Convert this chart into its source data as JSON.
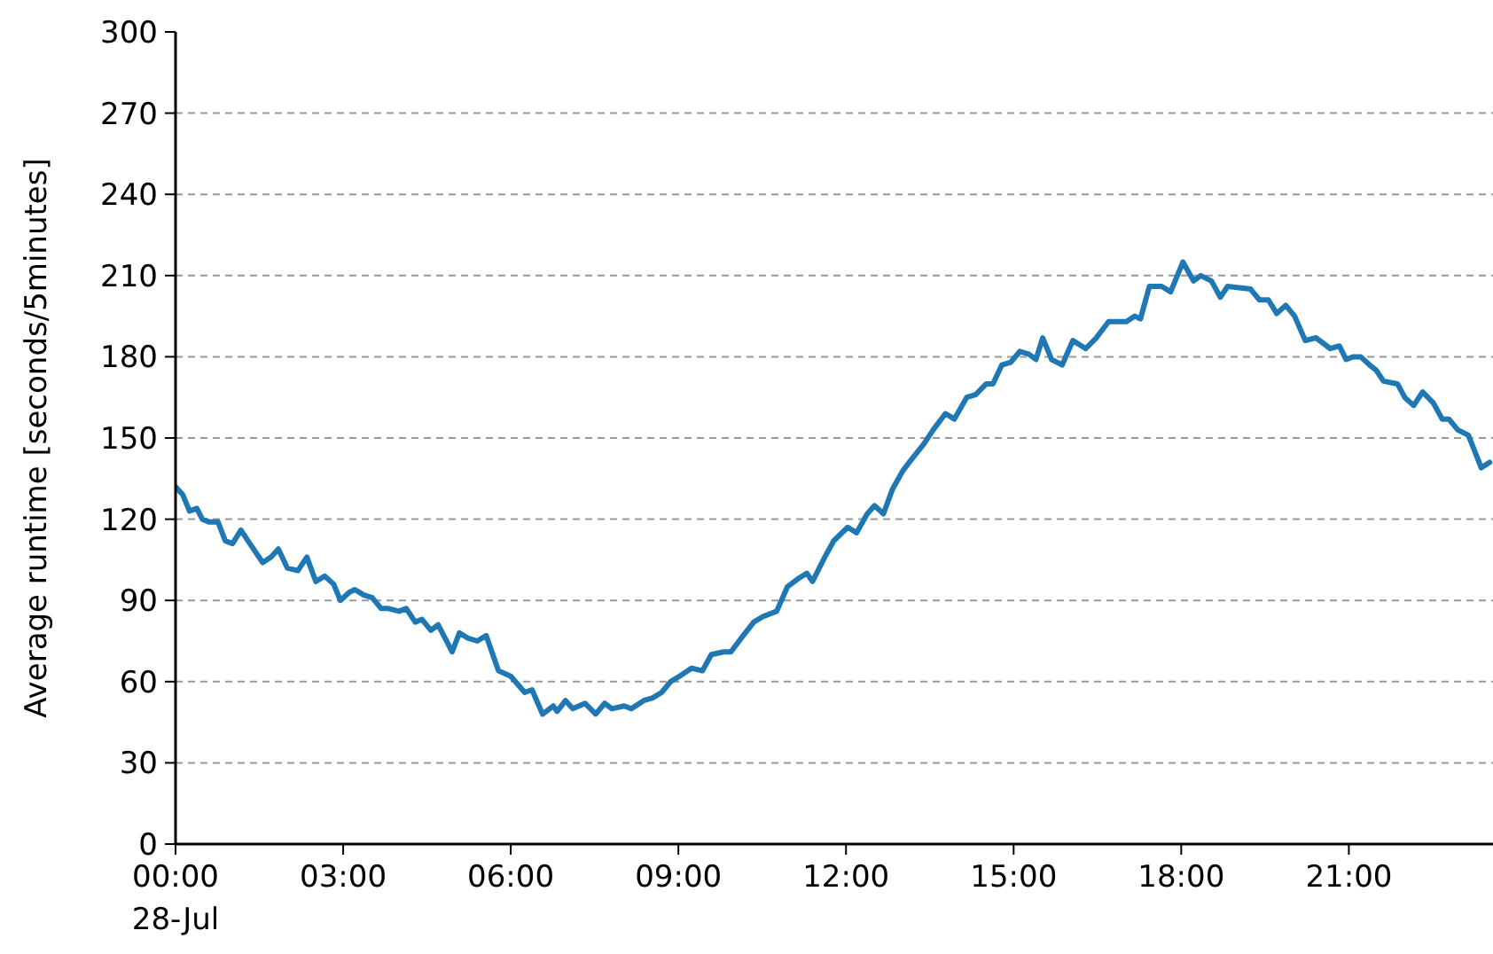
{
  "chart_data": {
    "type": "line",
    "ylabel": "Average runtime [seconds/5minutes]",
    "xlim": [
      0,
      23.58
    ],
    "ylim": [
      0,
      300
    ],
    "xticks": [
      {
        "value": 0,
        "label": "00:00\n28-Jul"
      },
      {
        "value": 3,
        "label": "03:00"
      },
      {
        "value": 6,
        "label": "06:00"
      },
      {
        "value": 9,
        "label": "09:00"
      },
      {
        "value": 12,
        "label": "12:00"
      },
      {
        "value": 15,
        "label": "15:00"
      },
      {
        "value": 18,
        "label": "18:00"
      },
      {
        "value": 21,
        "label": "21:00"
      }
    ],
    "yticks": [
      0,
      30,
      60,
      90,
      120,
      150,
      180,
      210,
      240,
      270,
      300
    ],
    "grid": "y",
    "line_style": "solid",
    "series": [
      {
        "color": "#1f77b4",
        "x": [
          0,
          0.13,
          0.25,
          0.38,
          0.48,
          0.6,
          0.76,
          0.89,
          1.02,
          1.17,
          1.33,
          1.56,
          1.71,
          1.84,
          2.0,
          2.19,
          2.35,
          2.51,
          2.67,
          2.83,
          2.95,
          3.11,
          3.21,
          3.37,
          3.52,
          3.68,
          3.81,
          4.0,
          4.13,
          4.29,
          4.41,
          4.57,
          4.7,
          4.95,
          5.08,
          5.24,
          5.4,
          5.56,
          5.78,
          6.0,
          6.25,
          6.38,
          6.57,
          6.76,
          6.83,
          6.98,
          7.11,
          7.33,
          7.52,
          7.68,
          7.81,
          8.03,
          8.16,
          8.38,
          8.54,
          8.7,
          8.86,
          9.02,
          9.24,
          9.43,
          9.59,
          9.81,
          9.94,
          10.16,
          10.35,
          10.51,
          10.76,
          10.95,
          11.14,
          11.3,
          11.4,
          11.62,
          11.78,
          12.03,
          12.19,
          12.38,
          12.51,
          12.67,
          12.83,
          13.02,
          13.17,
          13.4,
          13.56,
          13.78,
          13.94,
          14.16,
          14.32,
          14.51,
          14.63,
          14.79,
          14.95,
          15.11,
          15.27,
          15.4,
          15.52,
          15.68,
          15.87,
          16.06,
          16.29,
          16.48,
          16.7,
          17.02,
          17.17,
          17.27,
          17.43,
          17.65,
          17.81,
          18.03,
          18.22,
          18.35,
          18.54,
          18.7,
          18.83,
          19.24,
          19.4,
          19.56,
          19.71,
          19.87,
          20.03,
          20.22,
          20.41,
          20.67,
          20.83,
          20.95,
          21.08,
          21.21,
          21.37,
          21.49,
          21.62,
          21.87,
          22.0,
          22.16,
          22.32,
          22.51,
          22.67,
          22.79,
          22.95,
          23.14,
          23.37,
          23.52
        ],
        "values": [
          132,
          129,
          123,
          124,
          120,
          119,
          119,
          112,
          111,
          116,
          111,
          104,
          106,
          109,
          102,
          101,
          106,
          97,
          99,
          96,
          90,
          93,
          94,
          92,
          91,
          87,
          87,
          86,
          87,
          82,
          83,
          79,
          81,
          71,
          78,
          76,
          75,
          77,
          64,
          62,
          56,
          57,
          48,
          51,
          49,
          53,
          50,
          52,
          48,
          52,
          50,
          51,
          50,
          53,
          54,
          56,
          60,
          62,
          65,
          64,
          70,
          71,
          71,
          77,
          82,
          84,
          86,
          95,
          98,
          100,
          97,
          106,
          112,
          117,
          115,
          122,
          125,
          122,
          131,
          138,
          142,
          148,
          153,
          159,
          157,
          165,
          166,
          170,
          170,
          177,
          178,
          182,
          181,
          179,
          187,
          179,
          177,
          186,
          183,
          187,
          193,
          193,
          195,
          194,
          206,
          206,
          204,
          215,
          208,
          210,
          208,
          202,
          206,
          205,
          201,
          201,
          196,
          199,
          195,
          186,
          187,
          183,
          184,
          179,
          180,
          180,
          177,
          175,
          171,
          170,
          165,
          162,
          167,
          163,
          157,
          157,
          153,
          151,
          139,
          141
        ]
      }
    ]
  }
}
